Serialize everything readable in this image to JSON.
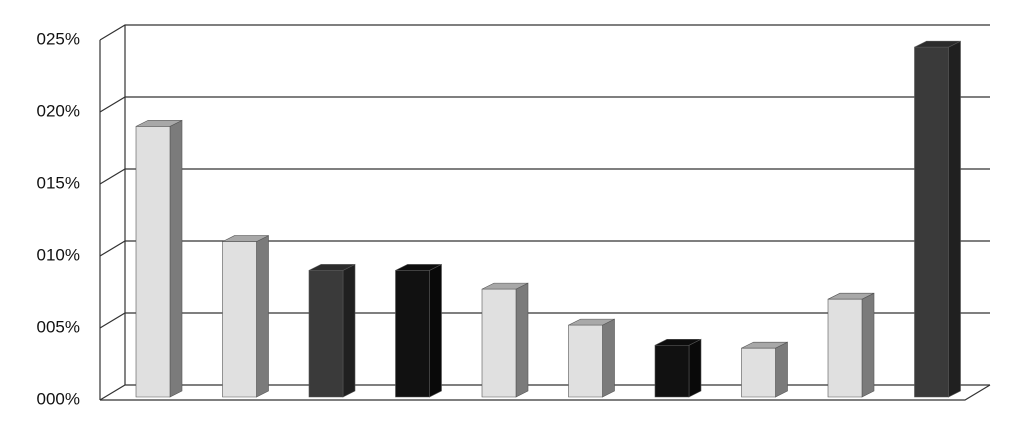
{
  "chart_data": {
    "type": "bar3d",
    "values": [
      19,
      11,
      9,
      9,
      7.7,
      5.2,
      3.8,
      3.6,
      7,
      24.5
    ],
    "colors": [
      "#e0e0e0",
      "#e0e0e0",
      "#3a3a3a",
      "#111111",
      "#e0e0e0",
      "#e0e0e0",
      "#111111",
      "#e0e0e0",
      "#e0e0e0",
      "#3a3a3a"
    ],
    "ylim": [
      0,
      25
    ],
    "yticks": [
      {
        "value": 0,
        "label": "000%"
      },
      {
        "value": 5,
        "label": "005%"
      },
      {
        "value": 10,
        "label": "010%"
      },
      {
        "value": 15,
        "label": "015%"
      },
      {
        "value": 20,
        "label": "020%"
      },
      {
        "value": 25,
        "label": "025%"
      }
    ],
    "grid": true
  }
}
